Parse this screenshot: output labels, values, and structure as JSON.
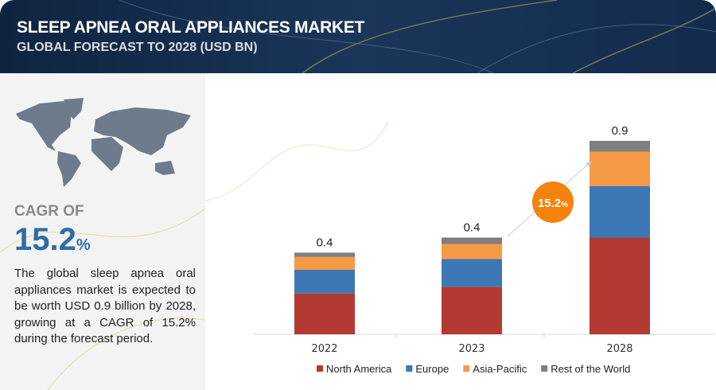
{
  "header": {
    "title": "SLEEP APNEA ORAL APPLIANCES MARKET",
    "subtitle": "GLOBAL FORECAST TO 2028 (USD BN)"
  },
  "sidebar": {
    "cagr_label": "CAGR OF",
    "cagr_value": "15.2",
    "cagr_unit": "%",
    "description": "The global sleep apnea oral appliances market is expected to be worth USD 0.9 billion by 2028, growing at a CAGR of 15.2% during the forecast period.",
    "map_icon": "world-map"
  },
  "badge": {
    "value": "15.2",
    "unit": "%",
    "color": "#f5820d"
  },
  "chart_data": {
    "type": "bar",
    "stacked": true,
    "categories": [
      "2022",
      "2023",
      "2028"
    ],
    "totals_labels": [
      "0.4",
      "0.4",
      "0.9"
    ],
    "series": [
      {
        "name": "North America",
        "color": "#b33a32",
        "values": [
          0.19,
          0.22,
          0.45
        ]
      },
      {
        "name": "Europe",
        "color": "#3b78b5",
        "values": [
          0.11,
          0.13,
          0.24
        ]
      },
      {
        "name": "Asia-Pacific",
        "color": "#f79a45",
        "values": [
          0.06,
          0.07,
          0.16
        ]
      },
      {
        "name": "Rest of the World",
        "color": "#7f7f7f",
        "values": [
          0.02,
          0.03,
          0.05
        ]
      }
    ],
    "ylim": [
      0,
      1
    ],
    "grid": false,
    "legend": "bottom",
    "xlabel": "",
    "ylabel": ""
  }
}
